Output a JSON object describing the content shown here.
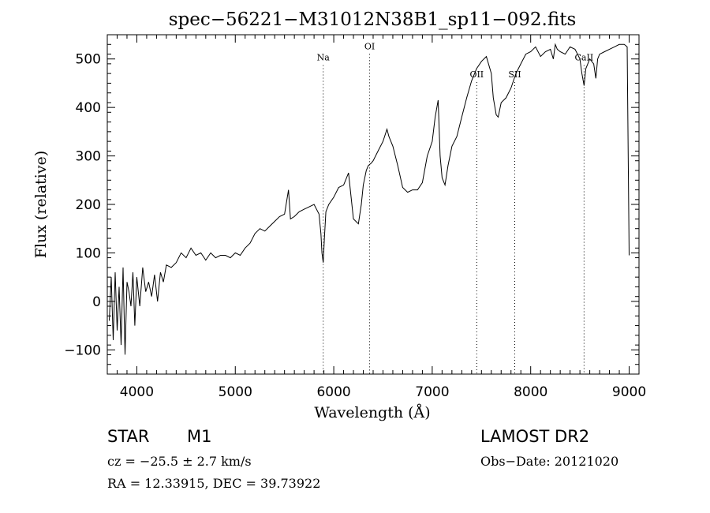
{
  "chart_data": {
    "type": "line",
    "title": "spec−56221−M31012N38B1_sp11−092.fits",
    "xlabel": "Wavelength (Å)",
    "ylabel": "Flux (relative)",
    "xlim": [
      3700,
      9100
    ],
    "ylim": [
      -150,
      550
    ],
    "xticks": [
      4000,
      5000,
      6000,
      7000,
      8000,
      9000
    ],
    "yticks": [
      -100,
      0,
      100,
      200,
      300,
      400,
      500
    ],
    "xtick_labels": [
      "4000",
      "5000",
      "6000",
      "7000",
      "8000",
      "9000"
    ],
    "ytick_labels": [
      "−100",
      "0",
      "100",
      "200",
      "300",
      "400",
      "500"
    ],
    "grid": false,
    "line_color": "#000000",
    "spectral_lines": [
      {
        "label": "Na",
        "x": 5893,
        "label_y": 497
      },
      {
        "label": "OI",
        "x": 6364,
        "label_y": 520
      },
      {
        "label": "OII",
        "x": 7452,
        "label_y": 462
      },
      {
        "label": "SII",
        "x": 7838,
        "label_y": 462
      },
      {
        "label": "CaII",
        "x": 8542,
        "label_y": 497
      }
    ],
    "series": [
      {
        "x": [
          3720,
          3740,
          3760,
          3780,
          3800,
          3820,
          3840,
          3860,
          3880,
          3900,
          3920,
          3940,
          3960,
          3980,
          4000,
          4030,
          4060,
          4090,
          4120,
          4150,
          4180,
          4210,
          4240,
          4270,
          4300,
          4350,
          4400,
          4450,
          4500,
          4550,
          4600,
          4650,
          4700,
          4750,
          4800,
          4850,
          4900,
          4950,
          5000,
          5050,
          5100,
          5150,
          5200,
          5250,
          5300,
          5350,
          5400,
          5450,
          5500,
          5540,
          5560,
          5600,
          5650,
          5700,
          5750,
          5800,
          5850,
          5870,
          5880,
          5893,
          5905,
          5920,
          5950,
          6000,
          6050,
          6100,
          6150,
          6200,
          6250,
          6280,
          6300,
          6330,
          6350,
          6380,
          6400,
          6450,
          6500,
          6540,
          6560,
          6600,
          6650,
          6700,
          6750,
          6800,
          6850,
          6900,
          6950,
          7000,
          7030,
          7060,
          7080,
          7100,
          7130,
          7160,
          7200,
          7250,
          7300,
          7350,
          7400,
          7450,
          7500,
          7550,
          7600,
          7620,
          7650,
          7670,
          7700,
          7750,
          7800,
          7850,
          7900,
          7950,
          8000,
          8050,
          8100,
          8150,
          8200,
          8230,
          8250,
          8270,
          8300,
          8350,
          8400,
          8450,
          8500,
          8520,
          8542,
          8560,
          8600,
          8640,
          8662,
          8680,
          8700,
          8750,
          8800,
          8850,
          8900,
          8950,
          8980,
          9000
        ],
        "y": [
          -40,
          50,
          -80,
          60,
          -60,
          30,
          -90,
          70,
          -110,
          40,
          20,
          -10,
          60,
          -50,
          50,
          -10,
          70,
          20,
          40,
          10,
          55,
          0,
          60,
          40,
          75,
          70,
          80,
          100,
          90,
          110,
          95,
          100,
          85,
          100,
          90,
          95,
          95,
          90,
          100,
          95,
          110,
          120,
          140,
          150,
          145,
          155,
          165,
          175,
          180,
          230,
          170,
          175,
          185,
          190,
          195,
          200,
          180,
          140,
          100,
          80,
          130,
          185,
          200,
          215,
          235,
          240,
          265,
          170,
          160,
          200,
          240,
          270,
          280,
          285,
          290,
          310,
          330,
          355,
          340,
          320,
          280,
          235,
          225,
          230,
          230,
          245,
          300,
          330,
          380,
          415,
          300,
          255,
          240,
          280,
          320,
          340,
          380,
          420,
          455,
          480,
          495,
          505,
          470,
          420,
          385,
          380,
          410,
          420,
          440,
          470,
          490,
          510,
          515,
          525,
          505,
          515,
          520,
          500,
          530,
          520,
          515,
          510,
          525,
          520,
          500,
          470,
          445,
          480,
          500,
          490,
          460,
          500,
          510,
          515,
          520,
          525,
          530,
          530,
          525,
          95
        ]
      }
    ]
  },
  "footer": {
    "object_type": "STAR",
    "subclass": "M1",
    "survey": "LAMOST DR2",
    "redshift_text": "cz = −25.5 ± 2.7 km/s",
    "obs_date": "Obs−Date: 20121020",
    "coords": "RA =  12.33915, DEC =  39.73922"
  }
}
